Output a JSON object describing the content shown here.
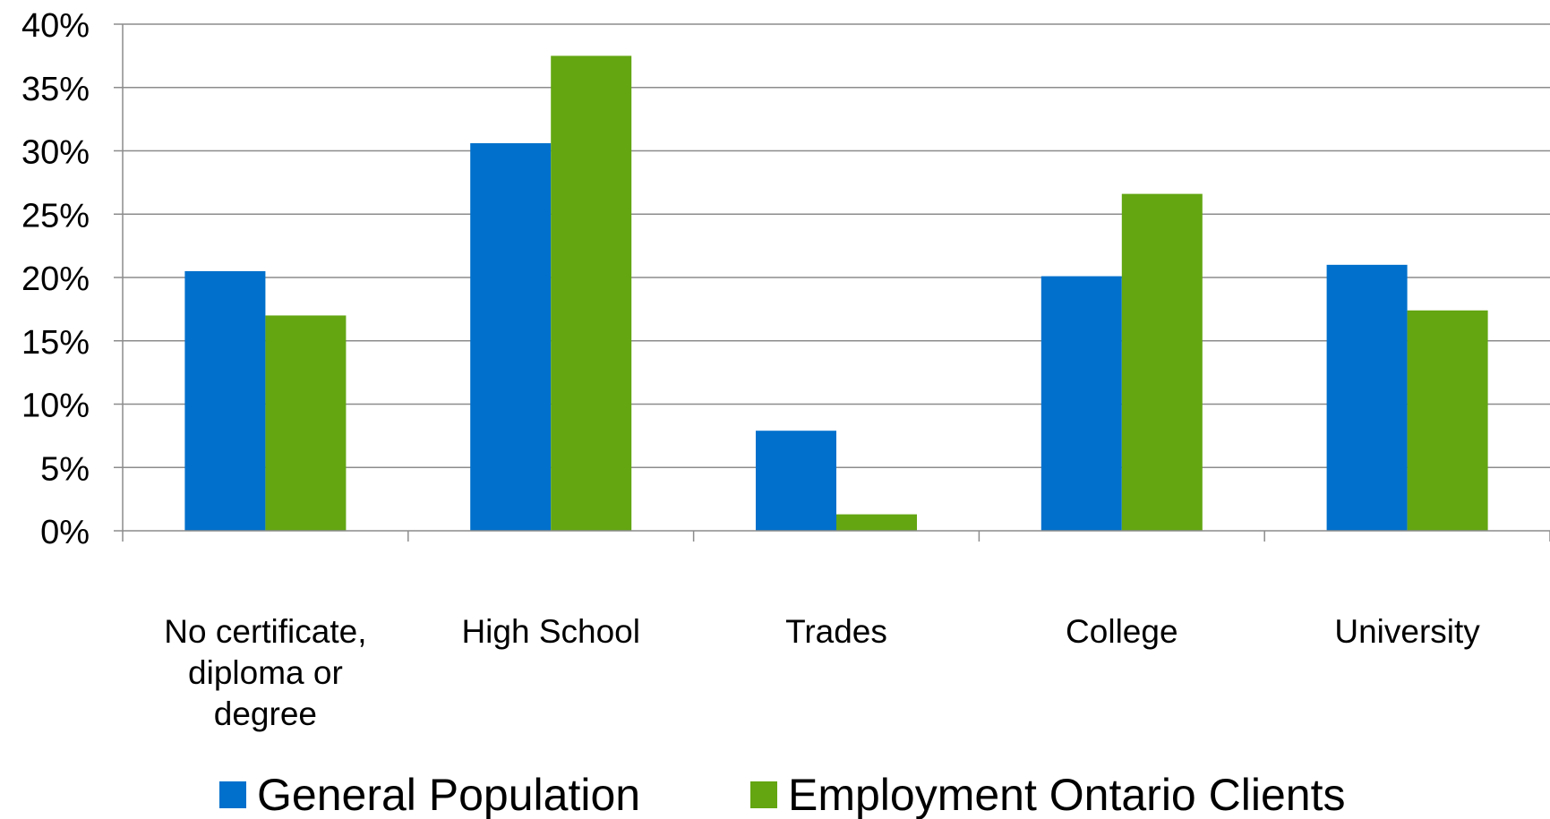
{
  "chart_data": {
    "type": "bar",
    "categories": [
      [
        "No certificate,",
        "diploma or",
        "degree"
      ],
      [
        "High School"
      ],
      [
        "Trades"
      ],
      [
        "College"
      ],
      [
        "University"
      ]
    ],
    "series": [
      {
        "name": "General Population",
        "color": "#0070CC",
        "values": [
          20.5,
          30.6,
          7.9,
          20.1,
          21.0
        ]
      },
      {
        "name": "Employment Ontario Clients",
        "color": "#63A612",
        "values": [
          17.0,
          37.5,
          1.3,
          26.6,
          17.4
        ]
      }
    ],
    "ylim": [
      0,
      40
    ],
    "yticks": [
      "0%",
      "5%",
      "10%",
      "15%",
      "20%",
      "25%",
      "30%",
      "35%",
      "40%"
    ],
    "grid": true,
    "legend": "bottom"
  }
}
